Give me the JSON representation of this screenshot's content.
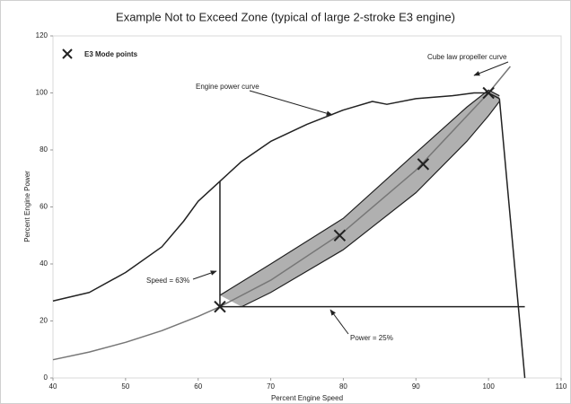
{
  "chart_data": {
    "type": "line",
    "title": "Example Not to Exceed Zone (typical of large 2-stroke E3 engine)",
    "xlabel": "Percent Engine Speed",
    "ylabel": "Percent Engine Power",
    "xlim": [
      40,
      110
    ],
    "ylim": [
      0,
      120
    ],
    "xticks": [
      40,
      50,
      60,
      70,
      80,
      90,
      100,
      110
    ],
    "yticks": [
      0,
      20,
      40,
      60,
      80,
      100,
      120
    ],
    "legend": "upper left",
    "annotations": [
      "Engine power curve",
      "Cube law propeller curve",
      "Speed = 63%",
      "Power = 25%"
    ],
    "series": [
      {
        "color": "#222222",
        "x": [
          40,
          45,
          50,
          55,
          58,
          60,
          63,
          66,
          70,
          75,
          80,
          84,
          86,
          90,
          95,
          98,
          100,
          101.5
        ],
        "values": [
          27,
          30,
          37,
          46,
          55,
          62,
          69,
          76,
          83,
          89,
          94,
          97,
          96,
          98,
          99,
          100,
          100,
          98
        ]
      },
      {
        "color": "#777777",
        "x": [
          40,
          45,
          50,
          55,
          60,
          63,
          70,
          80,
          90,
          100,
          103
        ],
        "values": [
          6.4,
          9.1,
          12.5,
          16.6,
          21.6,
          25,
          34.3,
          51.2,
          72.9,
          100,
          109.3
        ]
      },
      {
        "color": "#222222",
        "x": [
          63,
          63
        ],
        "values": [
          25,
          69
        ]
      },
      {
        "color": "#222222",
        "x": [
          63,
          105
        ],
        "values": [
          25,
          25
        ]
      },
      {
        "color": "#222222",
        "x": [
          101.5,
          105
        ],
        "values": [
          98,
          0
        ]
      },
      {
        "name": "E3 Mode points",
        "color": "#222222",
        "marker": "x",
        "x": [
          63,
          79.5,
          91,
          100
        ],
        "values": [
          25,
          50,
          75,
          100
        ]
      }
    ],
    "band": {
      "color": "#b0b0b0",
      "upper": {
        "x": [
          63,
          70,
          80,
          90,
          97,
          100,
          101.5
        ],
        "values": [
          29,
          40,
          56,
          79,
          95,
          101,
          99
        ]
      },
      "lower": {
        "x": [
          66,
          70,
          80,
          90,
          97,
          100,
          101.5
        ],
        "values": [
          25,
          30,
          45,
          65,
          83,
          92,
          97
        ]
      }
    }
  }
}
